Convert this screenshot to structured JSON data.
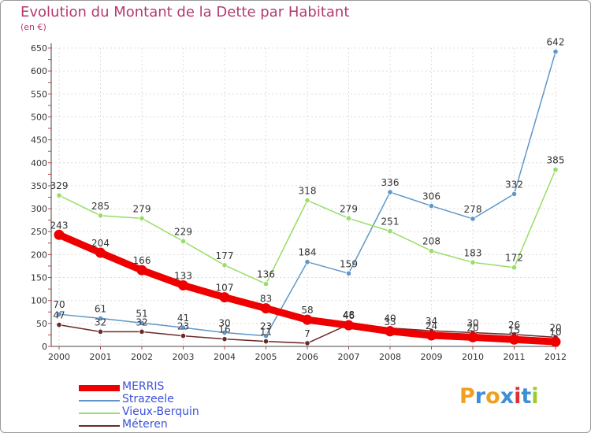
{
  "title": "Evolution du Montant de la Dette par Habitant",
  "unit_label": "(en €)",
  "logo": {
    "text": "Proxiti",
    "letters": [
      "P",
      "r",
      "o",
      "x",
      "i",
      "t",
      "i"
    ],
    "colors": [
      "#f0a020",
      "#3d8fd6",
      "#f0a020",
      "#3d8fd6",
      "#e03030",
      "#3d8fd6",
      "#9acb30"
    ]
  },
  "chart_data": {
    "type": "line",
    "title": "Evolution du Montant de la Dette par Habitant",
    "ylabel": "(en €)",
    "xlabel": "",
    "x": [
      "2000",
      "2001",
      "2002",
      "2003",
      "2004",
      "2005",
      "2006",
      "2007",
      "2008",
      "2009",
      "2010",
      "2011",
      "2012"
    ],
    "ylim": [
      0,
      650
    ],
    "yticks": [
      0,
      50,
      100,
      150,
      200,
      250,
      300,
      350,
      400,
      450,
      500,
      550,
      600,
      650
    ],
    "grid": true,
    "legend_position": "bottom-left",
    "series": [
      {
        "name": "MERRIS",
        "color": "#ee0000",
        "values": [
          243,
          204,
          166,
          133,
          107,
          83,
          58,
          46,
          33,
          24,
          20,
          15,
          10
        ]
      },
      {
        "name": "Strazeele",
        "color": "#5d97c9",
        "values": [
          70,
          61,
          51,
          41,
          30,
          23,
          184,
          159,
          336,
          306,
          278,
          332,
          642
        ]
      },
      {
        "name": "Vieux-Berquin",
        "color": "#98dd66",
        "values": [
          329,
          285,
          279,
          229,
          177,
          136,
          318,
          279,
          251,
          208,
          183,
          172,
          385
        ]
      },
      {
        "name": "Méteren",
        "color": "#6b2a2a",
        "values": [
          47,
          32,
          32,
          23,
          16,
          11,
          7,
          48,
          40,
          34,
          30,
          26,
          20
        ]
      }
    ]
  }
}
